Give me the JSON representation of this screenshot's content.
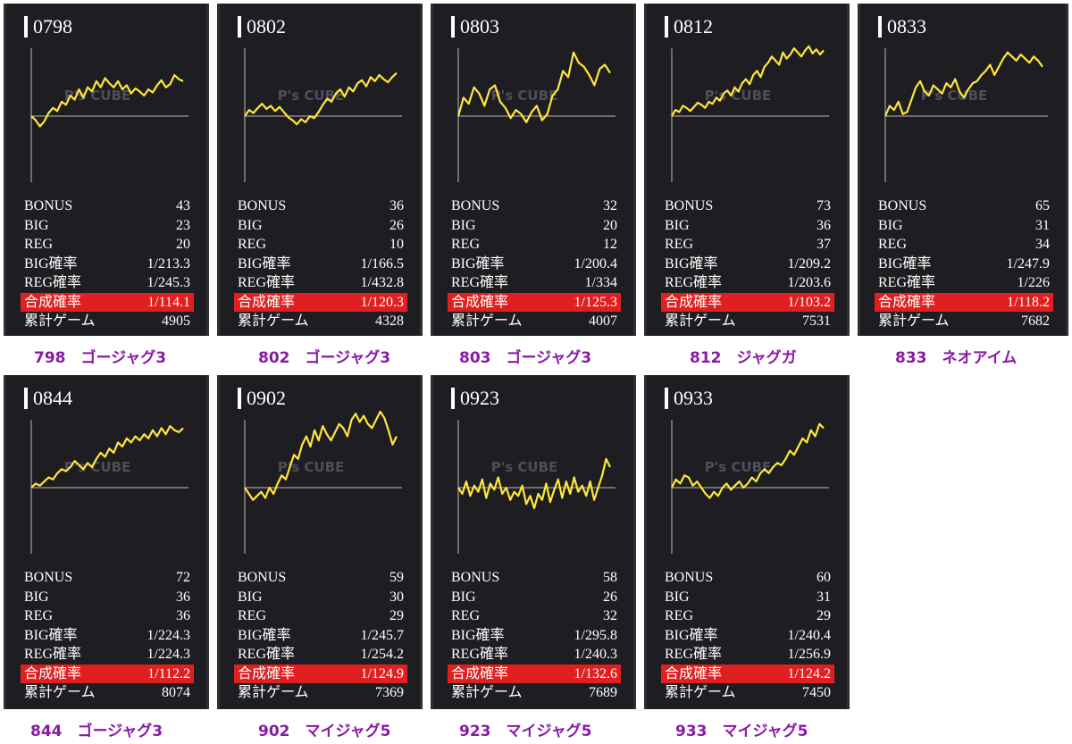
{
  "labels": {
    "bonus": "BONUS",
    "big": "BIG",
    "reg": "REG",
    "big_rate": "BIG確率",
    "reg_rate": "REG確率",
    "combined_rate": "合成確率",
    "total_games": "累計ゲーム",
    "watermark": "P's CUBE"
  },
  "colors": {
    "accent": "#e02020",
    "line": "#ffe63c",
    "caption": "#8a1aa6",
    "panel": "#1e1e22"
  },
  "machines": [
    {
      "id": "0798",
      "bonus": "43",
      "big": "23",
      "reg": "20",
      "big_rate": "1/213.3",
      "reg_rate": "1/245.3",
      "combined_rate": "1/114.1",
      "total_games": "4905",
      "caption": "798　ゴージャグ3"
    },
    {
      "id": "0802",
      "bonus": "36",
      "big": "26",
      "reg": "10",
      "big_rate": "1/166.5",
      "reg_rate": "1/432.8",
      "combined_rate": "1/120.3",
      "total_games": "4328",
      "caption": "802　ゴージャグ3"
    },
    {
      "id": "0803",
      "bonus": "32",
      "big": "20",
      "reg": "12",
      "big_rate": "1/200.4",
      "reg_rate": "1/334",
      "combined_rate": "1/125.3",
      "total_games": "4007",
      "caption": "803　ゴージャグ3"
    },
    {
      "id": "0812",
      "bonus": "73",
      "big": "36",
      "reg": "37",
      "big_rate": "1/209.2",
      "reg_rate": "1/203.6",
      "combined_rate": "1/103.2",
      "total_games": "7531",
      "caption": "812　ジャグガ"
    },
    {
      "id": "0833",
      "bonus": "65",
      "big": "31",
      "reg": "34",
      "big_rate": "1/247.9",
      "reg_rate": "1/226",
      "combined_rate": "1/118.2",
      "total_games": "7682",
      "caption": "833　ネオアイム"
    },
    {
      "id": "0844",
      "bonus": "72",
      "big": "36",
      "reg": "36",
      "big_rate": "1/224.3",
      "reg_rate": "1/224.3",
      "combined_rate": "1/112.2",
      "total_games": "8074",
      "caption": "844　ゴージャグ3"
    },
    {
      "id": "0902",
      "bonus": "59",
      "big": "30",
      "reg": "29",
      "big_rate": "1/245.7",
      "reg_rate": "1/254.2",
      "combined_rate": "1/124.9",
      "total_games": "7369",
      "caption": "902　マイジャグ5"
    },
    {
      "id": "0923",
      "bonus": "58",
      "big": "26",
      "reg": "32",
      "big_rate": "1/295.8",
      "reg_rate": "1/240.3",
      "combined_rate": "1/132.6",
      "total_games": "7689",
      "caption": "923　マイジャグ5"
    },
    {
      "id": "0933",
      "bonus": "60",
      "big": "31",
      "reg": "29",
      "big_rate": "1/240.4",
      "reg_rate": "1/256.9",
      "combined_rate": "1/124.2",
      "total_games": "7450",
      "caption": "933　マイジャグ5"
    }
  ],
  "chart_data": [
    {
      "type": "line",
      "machine": "0798",
      "y": [
        0,
        -4,
        -10,
        -5,
        3,
        8,
        5,
        14,
        11,
        20,
        16,
        26,
        18,
        28,
        24,
        34,
        28,
        37,
        32,
        28,
        34,
        26,
        30,
        22,
        27,
        24,
        20,
        26,
        23,
        30,
        35,
        28,
        31,
        40,
        36,
        34
      ]
    },
    {
      "type": "line",
      "machine": "0802",
      "y": [
        0,
        6,
        3,
        8,
        12,
        7,
        10,
        5,
        9,
        4,
        -1,
        -4,
        -8,
        -3,
        -6,
        0,
        -2,
        4,
        11,
        17,
        14,
        22,
        26,
        19,
        28,
        24,
        32,
        35,
        29,
        38,
        34,
        40,
        36,
        33,
        38,
        42
      ]
    },
    {
      "type": "line",
      "machine": "0803",
      "y": [
        0,
        18,
        12,
        28,
        22,
        10,
        26,
        30,
        14,
        8,
        -2,
        6,
        2,
        -6,
        4,
        10,
        -4,
        2,
        20,
        26,
        44,
        38,
        62,
        52,
        48,
        40,
        30,
        46,
        50,
        42
      ]
    },
    {
      "type": "line",
      "machine": "0812",
      "y": [
        0,
        6,
        4,
        10,
        8,
        5,
        9,
        13,
        11,
        8,
        14,
        12,
        18,
        15,
        22,
        25,
        20,
        28,
        24,
        32,
        36,
        31,
        40,
        44,
        38,
        48,
        52,
        58,
        54,
        50,
        62,
        56,
        60,
        66,
        62,
        58,
        64,
        68,
        61,
        65,
        60,
        64
      ]
    },
    {
      "type": "line",
      "machine": "0833",
      "y": [
        0,
        10,
        6,
        14,
        2,
        4,
        16,
        28,
        34,
        24,
        20,
        30,
        26,
        22,
        32,
        28,
        36,
        24,
        18,
        26,
        32,
        34,
        40,
        44,
        50,
        40,
        48,
        56,
        62,
        58,
        54,
        60,
        56,
        52,
        58,
        54,
        48
      ]
    },
    {
      "type": "line",
      "machine": "0844",
      "y": [
        0,
        4,
        2,
        6,
        10,
        8,
        14,
        18,
        16,
        20,
        26,
        22,
        18,
        24,
        20,
        28,
        34,
        30,
        38,
        34,
        44,
        40,
        48,
        44,
        50,
        46,
        52,
        48,
        56,
        50,
        58,
        52,
        60,
        56,
        54,
        58
      ]
    },
    {
      "type": "line",
      "machine": "0902",
      "y": [
        0,
        -6,
        -12,
        -8,
        -4,
        -10,
        0,
        -6,
        4,
        12,
        8,
        20,
        32,
        28,
        42,
        50,
        40,
        56,
        46,
        60,
        52,
        46,
        54,
        62,
        58,
        50,
        66,
        72,
        64,
        70,
        62,
        58,
        66,
        74,
        68,
        56,
        42,
        50
      ]
    },
    {
      "type": "line",
      "machine": "0923",
      "y": [
        0,
        -6,
        6,
        -8,
        2,
        -4,
        8,
        -10,
        4,
        -2,
        10,
        -6,
        0,
        -12,
        -4,
        -8,
        2,
        -16,
        -8,
        -20,
        -6,
        -12,
        4,
        -14,
        -2,
        8,
        -10,
        6,
        -6,
        10,
        -4,
        2,
        -8,
        6,
        -12,
        0,
        12,
        28,
        20
      ]
    },
    {
      "type": "line",
      "machine": "0933",
      "y": [
        0,
        8,
        4,
        12,
        10,
        2,
        6,
        0,
        -6,
        -10,
        -4,
        -8,
        0,
        4,
        -2,
        2,
        6,
        0,
        4,
        10,
        6,
        14,
        18,
        14,
        20,
        24,
        22,
        28,
        36,
        32,
        40,
        48,
        44,
        56,
        50,
        62,
        58
      ]
    }
  ]
}
